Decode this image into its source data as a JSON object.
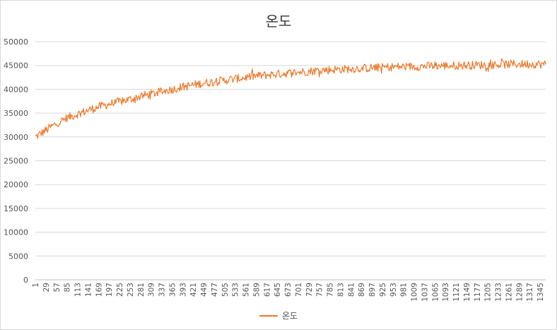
{
  "chart_data": {
    "type": "line",
    "title": "온도",
    "xlabel": "",
    "ylabel": "",
    "ylim": [
      0,
      50000
    ],
    "yticks": [
      0,
      5000,
      10000,
      15000,
      20000,
      25000,
      30000,
      35000,
      40000,
      45000,
      50000
    ],
    "xticks": [
      1,
      29,
      57,
      85,
      113,
      141,
      169,
      197,
      225,
      253,
      281,
      309,
      337,
      365,
      393,
      421,
      449,
      477,
      505,
      533,
      561,
      589,
      617,
      645,
      673,
      701,
      729,
      757,
      785,
      813,
      841,
      869,
      897,
      925,
      953,
      981,
      1009,
      1037,
      1065,
      1093,
      1121,
      1149,
      1177,
      1205,
      1233,
      1261,
      1289,
      1317,
      1345
    ],
    "xlim": [
      1,
      1360
    ],
    "grid": true,
    "legend_position": "bottom",
    "series": [
      {
        "name": "온도",
        "color": "#ED7D31",
        "x": [
          1,
          29,
          57,
          85,
          113,
          141,
          169,
          197,
          225,
          253,
          281,
          309,
          337,
          365,
          393,
          421,
          449,
          477,
          505,
          533,
          561,
          589,
          617,
          645,
          673,
          701,
          729,
          757,
          785,
          813,
          841,
          869,
          897,
          925,
          953,
          981,
          1009,
          1037,
          1065,
          1093,
          1121,
          1149,
          1177,
          1205,
          1233,
          1261,
          1289,
          1317,
          1345,
          1360
        ],
        "y": [
          30000,
          31400,
          32800,
          34000,
          34800,
          35600,
          36300,
          36900,
          37400,
          37900,
          38500,
          39000,
          39500,
          40000,
          40500,
          40900,
          41300,
          41600,
          41900,
          42200,
          42500,
          42800,
          43000,
          43200,
          43400,
          43600,
          43800,
          44000,
          44100,
          44200,
          44300,
          44400,
          44500,
          44600,
          44700,
          44750,
          44800,
          44850,
          44900,
          44950,
          45000,
          45050,
          45100,
          45150,
          45200,
          45250,
          45300,
          45300,
          45300,
          45200
        ],
        "noise": 900
      }
    ]
  }
}
